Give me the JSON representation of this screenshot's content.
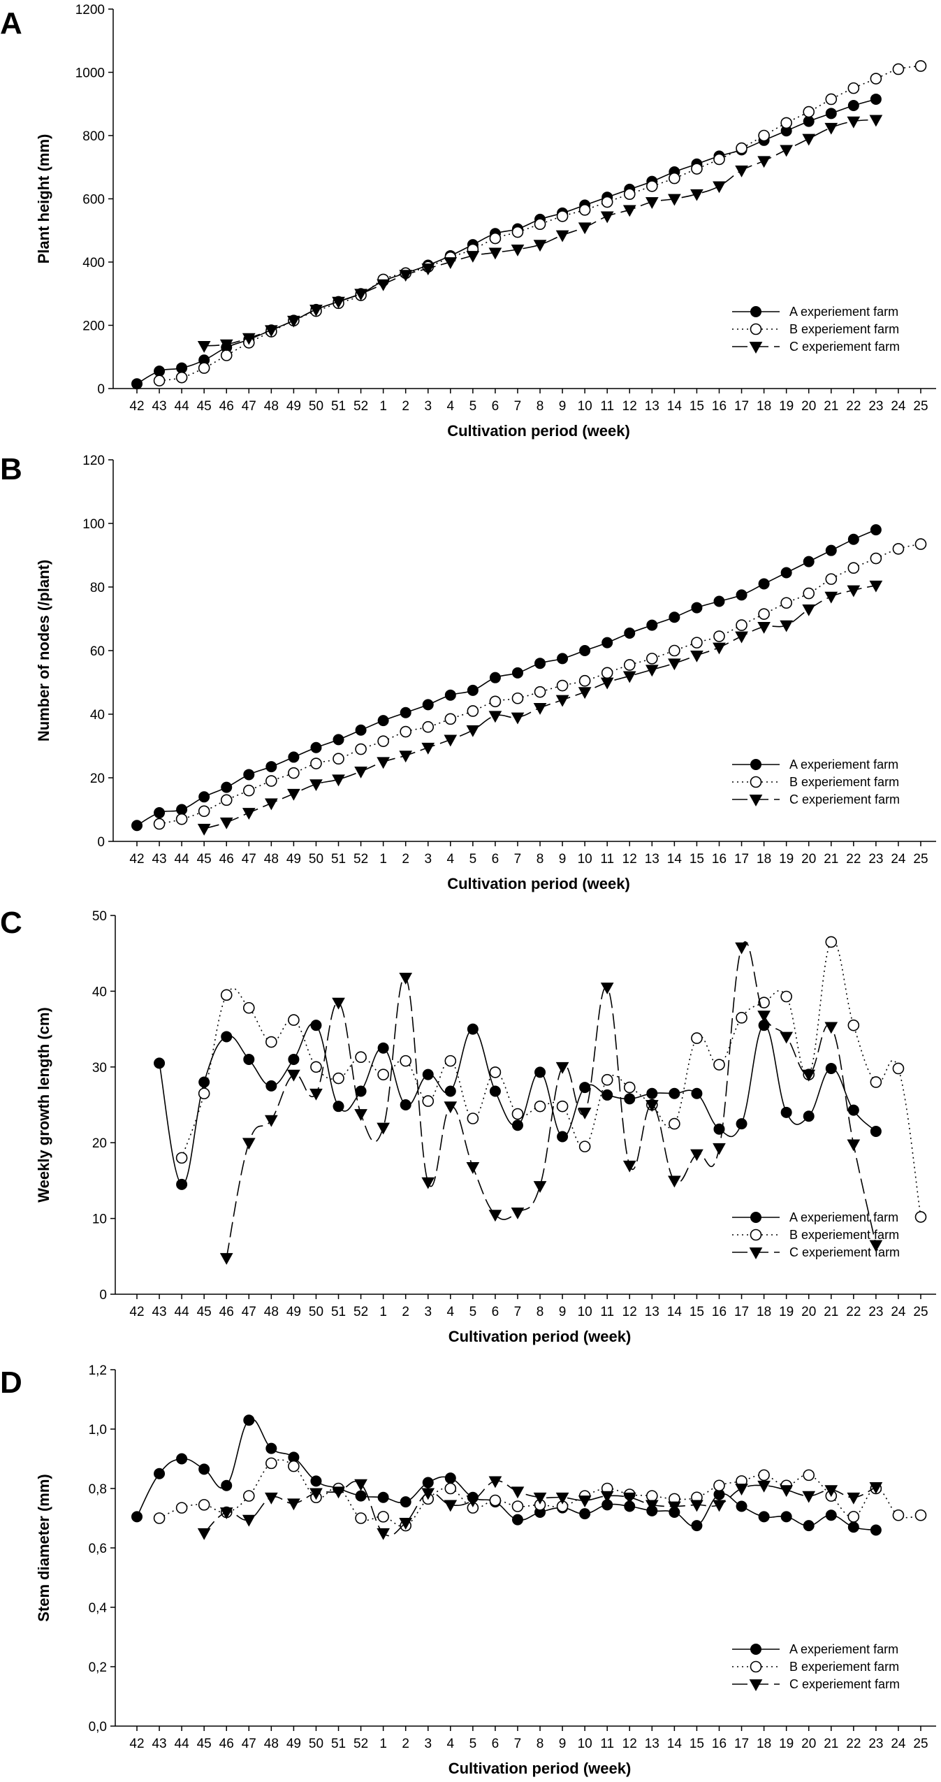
{
  "chart_data": [
    {
      "type": "line",
      "panel": "A",
      "title": "",
      "xlabel": "Cultivation period (week)",
      "ylabel": "Plant height (mm)",
      "ylim": [
        0,
        1200
      ],
      "yticks": [
        0,
        200,
        400,
        600,
        800,
        1000,
        1200
      ],
      "categories": [
        "42",
        "43",
        "44",
        "45",
        "46",
        "47",
        "48",
        "49",
        "50",
        "51",
        "52",
        "1",
        "2",
        "3",
        "4",
        "5",
        "6",
        "7",
        "8",
        "9",
        "10",
        "11",
        "12",
        "13",
        "14",
        "15",
        "16",
        "17",
        "18",
        "19",
        "20",
        "21",
        "22",
        "23",
        "24",
        "25"
      ],
      "series": [
        {
          "name": "A experiement farm",
          "values": [
            15,
            55,
            65,
            90,
            130,
            155,
            185,
            215,
            250,
            275,
            300,
            340,
            365,
            390,
            420,
            455,
            490,
            505,
            535,
            555,
            580,
            605,
            630,
            655,
            685,
            710,
            735,
            755,
            785,
            815,
            845,
            870,
            895,
            915,
            null,
            null
          ]
        },
        {
          "name": "B experiement farm",
          "values": [
            null,
            25,
            35,
            65,
            105,
            145,
            180,
            215,
            245,
            270,
            295,
            345,
            365,
            385,
            415,
            440,
            475,
            495,
            520,
            545,
            565,
            590,
            615,
            640,
            665,
            695,
            725,
            760,
            800,
            840,
            875,
            915,
            950,
            980,
            1010,
            1020
          ]
        },
        {
          "name": "C experiement farm",
          "values": [
            null,
            null,
            null,
            135,
            140,
            160,
            185,
            215,
            250,
            275,
            300,
            330,
            360,
            380,
            400,
            420,
            430,
            440,
            455,
            485,
            510,
            545,
            565,
            590,
            600,
            615,
            640,
            690,
            720,
            755,
            790,
            825,
            845,
            850,
            null,
            null
          ]
        }
      ],
      "legend_position": "bottom-right"
    },
    {
      "type": "line",
      "panel": "B",
      "title": "",
      "xlabel": "Cultivation period (week)",
      "ylabel": "Number of nodes (/plant)",
      "ylim": [
        0,
        120
      ],
      "yticks": [
        0,
        20,
        40,
        60,
        80,
        100,
        120
      ],
      "categories": [
        "42",
        "43",
        "44",
        "45",
        "46",
        "47",
        "48",
        "49",
        "50",
        "51",
        "52",
        "1",
        "2",
        "3",
        "4",
        "5",
        "6",
        "7",
        "8",
        "9",
        "10",
        "11",
        "12",
        "13",
        "14",
        "15",
        "16",
        "17",
        "18",
        "19",
        "20",
        "21",
        "22",
        "23",
        "24",
        "25"
      ],
      "series": [
        {
          "name": "A experiement farm",
          "values": [
            5,
            9,
            10,
            14,
            17,
            21,
            23.5,
            26.5,
            29.5,
            32,
            35,
            38,
            40.5,
            43,
            46,
            47.5,
            51.5,
            53,
            56,
            57.5,
            60,
            62.5,
            65.5,
            68,
            70.5,
            73.5,
            75.5,
            77.5,
            81,
            84.5,
            88,
            91.5,
            95,
            98,
            null,
            null
          ]
        },
        {
          "name": "B experiement farm",
          "values": [
            null,
            5.5,
            7,
            9.5,
            13,
            16,
            19,
            21.5,
            24.5,
            26,
            29,
            31.5,
            34.5,
            36,
            38.5,
            41,
            44,
            45,
            47,
            49,
            50.5,
            53,
            55.5,
            57.5,
            60,
            62.5,
            64.5,
            68,
            71.5,
            75,
            78,
            82.5,
            86,
            89,
            92,
            93.5
          ]
        },
        {
          "name": "C experiement farm",
          "values": [
            null,
            null,
            null,
            4,
            6,
            9,
            12,
            15,
            18,
            19.5,
            22,
            25,
            27,
            29.5,
            32,
            35,
            39.5,
            39,
            42,
            44.5,
            47,
            50,
            52,
            54,
            56,
            58.5,
            61,
            64.5,
            67.5,
            68,
            73,
            77,
            79,
            80.5,
            null,
            null
          ]
        }
      ],
      "legend_position": "bottom-right"
    },
    {
      "type": "line",
      "panel": "C",
      "title": "",
      "xlabel": "Cultivation period (week)",
      "ylabel": "Weekly growth length (cm)",
      "ylim": [
        0,
        50
      ],
      "yticks": [
        0,
        10,
        20,
        30,
        40,
        50
      ],
      "categories": [
        "42",
        "43",
        "44",
        "45",
        "46",
        "47",
        "48",
        "49",
        "50",
        "51",
        "52",
        "1",
        "2",
        "3",
        "4",
        "5",
        "6",
        "7",
        "8",
        "9",
        "10",
        "11",
        "12",
        "13",
        "14",
        "15",
        "16",
        "17",
        "18",
        "19",
        "20",
        "21",
        "22",
        "23",
        "24",
        "25"
      ],
      "series": [
        {
          "name": "A experiement farm",
          "values": [
            null,
            30.5,
            14.5,
            28,
            34,
            31,
            27.5,
            31,
            35.5,
            24.8,
            26.8,
            32.5,
            25,
            29,
            26.8,
            35,
            26.8,
            22.3,
            29.3,
            20.8,
            27.3,
            26.3,
            25.8,
            26.5,
            26.5,
            26.5,
            21.8,
            22.5,
            35.5,
            24,
            23.5,
            29.8,
            24.3,
            21.5,
            null,
            null
          ]
        },
        {
          "name": "B experiement farm",
          "values": [
            null,
            null,
            18,
            26.5,
            39.5,
            37.8,
            33.3,
            36.2,
            30,
            28.5,
            31.3,
            29,
            30.8,
            25.5,
            30.8,
            23.2,
            29.3,
            23.8,
            24.8,
            24.8,
            19.5,
            28.3,
            27.3,
            25,
            22.5,
            33.8,
            30.3,
            36.5,
            38.5,
            39.3,
            29,
            46.5,
            35.5,
            28,
            29.8,
            10.2
          ]
        },
        {
          "name": "C experiement farm",
          "values": [
            null,
            null,
            null,
            null,
            4.8,
            20,
            23,
            29,
            26.5,
            38.5,
            23.8,
            22,
            41.8,
            14.8,
            24.8,
            16.8,
            10.5,
            10.8,
            14.3,
            30,
            24,
            40.5,
            17,
            25,
            15,
            18.5,
            19.3,
            45.8,
            36.8,
            34,
            29,
            35.3,
            19.8,
            6.5,
            null,
            null
          ]
        }
      ],
      "legend_position": "bottom-right"
    },
    {
      "type": "line",
      "panel": "D",
      "title": "",
      "xlabel": "Cultivation period (week)",
      "ylabel": "Stem diameter (mm)",
      "ylim": [
        0,
        1.2
      ],
      "yticks": [
        "0,0",
        "0,2",
        "0,4",
        "0,6",
        "0,8",
        "1,0",
        "1,2"
      ],
      "categories": [
        "42",
        "43",
        "44",
        "45",
        "46",
        "47",
        "48",
        "49",
        "50",
        "51",
        "52",
        "1",
        "2",
        "3",
        "4",
        "5",
        "6",
        "7",
        "8",
        "9",
        "10",
        "11",
        "12",
        "13",
        "14",
        "15",
        "16",
        "17",
        "18",
        "19",
        "20",
        "21",
        "22",
        "23",
        "24",
        "25"
      ],
      "series": [
        {
          "name": "A experiement farm",
          "values": [
            0.705,
            0.85,
            0.9,
            0.865,
            0.81,
            1.03,
            0.935,
            0.905,
            0.825,
            0.8,
            0.775,
            0.77,
            0.755,
            0.82,
            0.835,
            0.77,
            0.755,
            0.695,
            0.72,
            0.735,
            0.715,
            0.745,
            0.74,
            0.725,
            0.72,
            0.675,
            0.78,
            0.74,
            0.705,
            0.705,
            0.675,
            0.71,
            0.67,
            0.66,
            null,
            null
          ]
        },
        {
          "name": "B experiement farm",
          "values": [
            null,
            0.7,
            0.735,
            0.745,
            0.72,
            0.775,
            0.885,
            0.875,
            0.77,
            0.8,
            0.7,
            0.705,
            0.675,
            0.765,
            0.8,
            0.735,
            0.76,
            0.74,
            0.745,
            0.74,
            0.775,
            0.8,
            0.78,
            0.775,
            0.765,
            0.77,
            0.81,
            0.825,
            0.845,
            0.81,
            0.845,
            0.775,
            0.705,
            0.8,
            0.71,
            0.71
          ]
        },
        {
          "name": "C experiement farm",
          "values": [
            null,
            null,
            null,
            0.65,
            0.72,
            0.695,
            0.77,
            0.75,
            0.785,
            0.79,
            0.815,
            0.65,
            0.685,
            0.785,
            0.745,
            0.76,
            0.825,
            0.79,
            0.77,
            0.77,
            0.76,
            0.775,
            0.77,
            0.745,
            0.74,
            0.745,
            0.745,
            0.8,
            0.81,
            0.795,
            0.775,
            0.795,
            0.77,
            0.805,
            null,
            null
          ]
        }
      ],
      "legend_position": "bottom-right"
    }
  ]
}
